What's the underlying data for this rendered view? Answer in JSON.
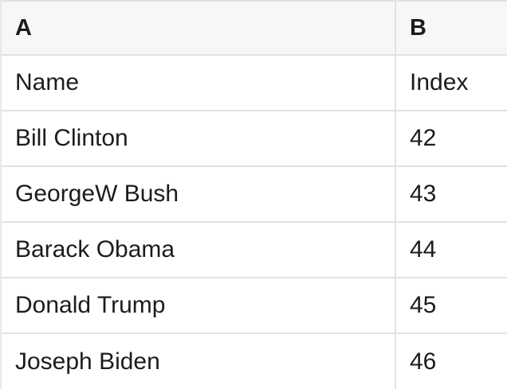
{
  "table": {
    "column_headers": [
      "A",
      "B"
    ],
    "rows": [
      [
        "Name",
        "Index"
      ],
      [
        "Bill Clinton",
        "42"
      ],
      [
        "GeorgeW Bush",
        "43"
      ],
      [
        "Barack Obama",
        "44"
      ],
      [
        "Donald Trump",
        "45"
      ],
      [
        "Joseph Biden",
        "46"
      ]
    ]
  },
  "colors": {
    "header_background": "#f7f7f7",
    "row_background": "#ffffff",
    "grid_border": "#e2e2e2",
    "text": "#1c1c1e"
  }
}
